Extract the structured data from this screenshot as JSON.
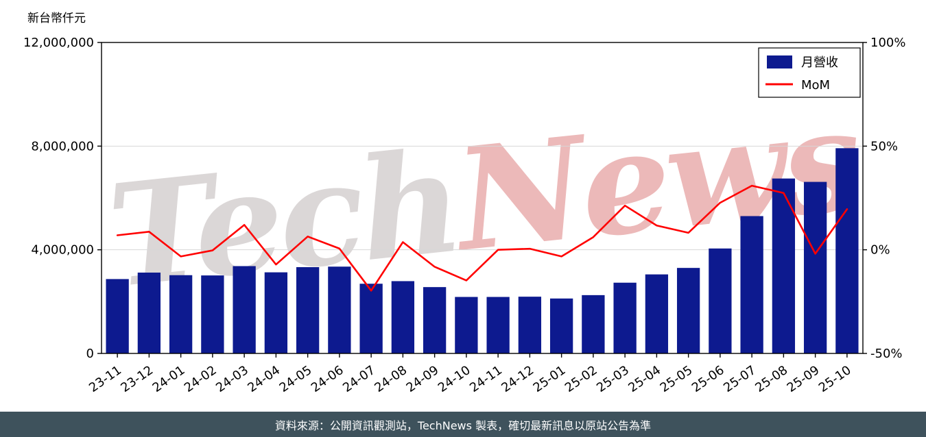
{
  "watermark": {
    "part1": "Tech",
    "part2": "News"
  },
  "footer": {
    "text": "資料來源：公開資訊觀測站，TechNews 製表，確切最新訊息以原站公告為準"
  },
  "chart_data": {
    "type": "bar",
    "title": "",
    "categories": [
      "23-11",
      "23-12",
      "24-01",
      "24-02",
      "24-03",
      "24-04",
      "24-05",
      "24-06",
      "24-07",
      "24-08",
      "24-09",
      "24-10",
      "24-11",
      "24-12",
      "25-01",
      "25-02",
      "25-03",
      "25-04",
      "25-05",
      "25-06",
      "25-07",
      "25-08",
      "25-09",
      "25-10"
    ],
    "series": [
      {
        "name": "月營收",
        "type": "bar",
        "axis": "left",
        "color": "#0d1a8f",
        "values": [
          2870000,
          3120000,
          3020000,
          3010000,
          3370000,
          3130000,
          3330000,
          3350000,
          2690000,
          2790000,
          2560000,
          2180000,
          2180000,
          2190000,
          2120000,
          2250000,
          2730000,
          3050000,
          3300000,
          4050000,
          5300000,
          6750000,
          6620000,
          7920000
        ]
      },
      {
        "name": "MoM",
        "type": "line",
        "axis": "right",
        "color": "#ff0000",
        "values": [
          7.0,
          8.7,
          -3.2,
          -0.3,
          12.0,
          -7.1,
          6.4,
          0.6,
          -19.7,
          3.7,
          -8.2,
          -14.8,
          0.0,
          0.5,
          -3.2,
          6.1,
          21.3,
          11.7,
          8.2,
          22.7,
          30.9,
          27.4,
          -1.9,
          19.6
        ]
      }
    ],
    "left_axis": {
      "title": "新台幣仟元",
      "range": [
        0,
        12000000
      ],
      "ticks": [
        0,
        4000000,
        8000000,
        12000000
      ],
      "tick_labels": [
        "0",
        "4,000,000",
        "8,000,000",
        "12,000,000"
      ]
    },
    "right_axis": {
      "range": [
        -50,
        100
      ],
      "ticks": [
        -50,
        0,
        50,
        100
      ],
      "tick_labels": [
        "-50%",
        "0%",
        "50%",
        "100%"
      ]
    },
    "legend": {
      "position": "top-right",
      "entries": [
        "月營收",
        "MoM"
      ]
    },
    "grid": true
  }
}
